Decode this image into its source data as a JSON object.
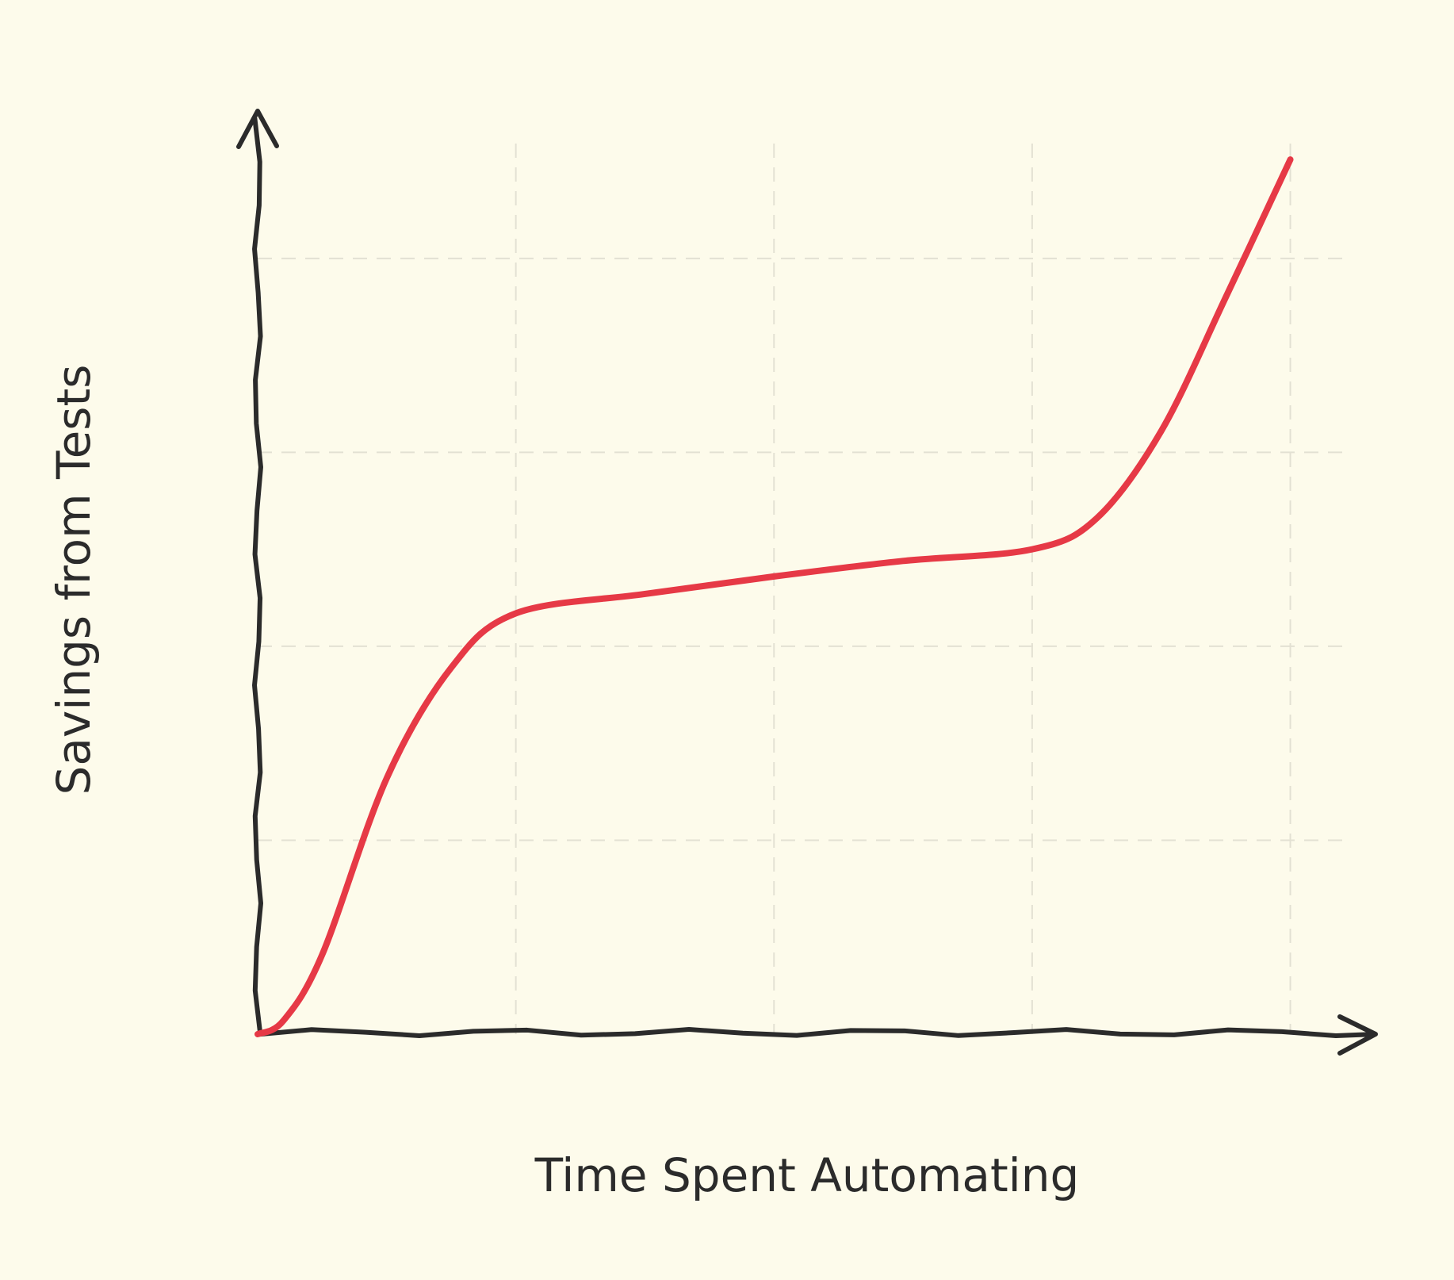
{
  "chart_data": {
    "type": "line",
    "x_label": "Time Spent Automating",
    "y_label": "Savings from Tests",
    "x": [
      0,
      0.1,
      0.25,
      0.5,
      0.75,
      1,
      1.5,
      2,
      2.5,
      3,
      3.25,
      3.5,
      3.75,
      4
    ],
    "series": [
      {
        "color": "#e63946",
        "values": [
          0,
          0.07,
          0.41,
          1.32,
          1.89,
          2.17,
          2.27,
          2.36,
          2.44,
          2.5,
          2.66,
          3.11,
          3.8,
          4.51
        ]
      }
    ],
    "xlim": [
      0,
      4.33
    ],
    "ylim": [
      0,
      4.76
    ],
    "xticks": [
      1,
      2,
      3,
      4
    ],
    "yticks": [
      1,
      2,
      3,
      4
    ],
    "grid": true
  }
}
